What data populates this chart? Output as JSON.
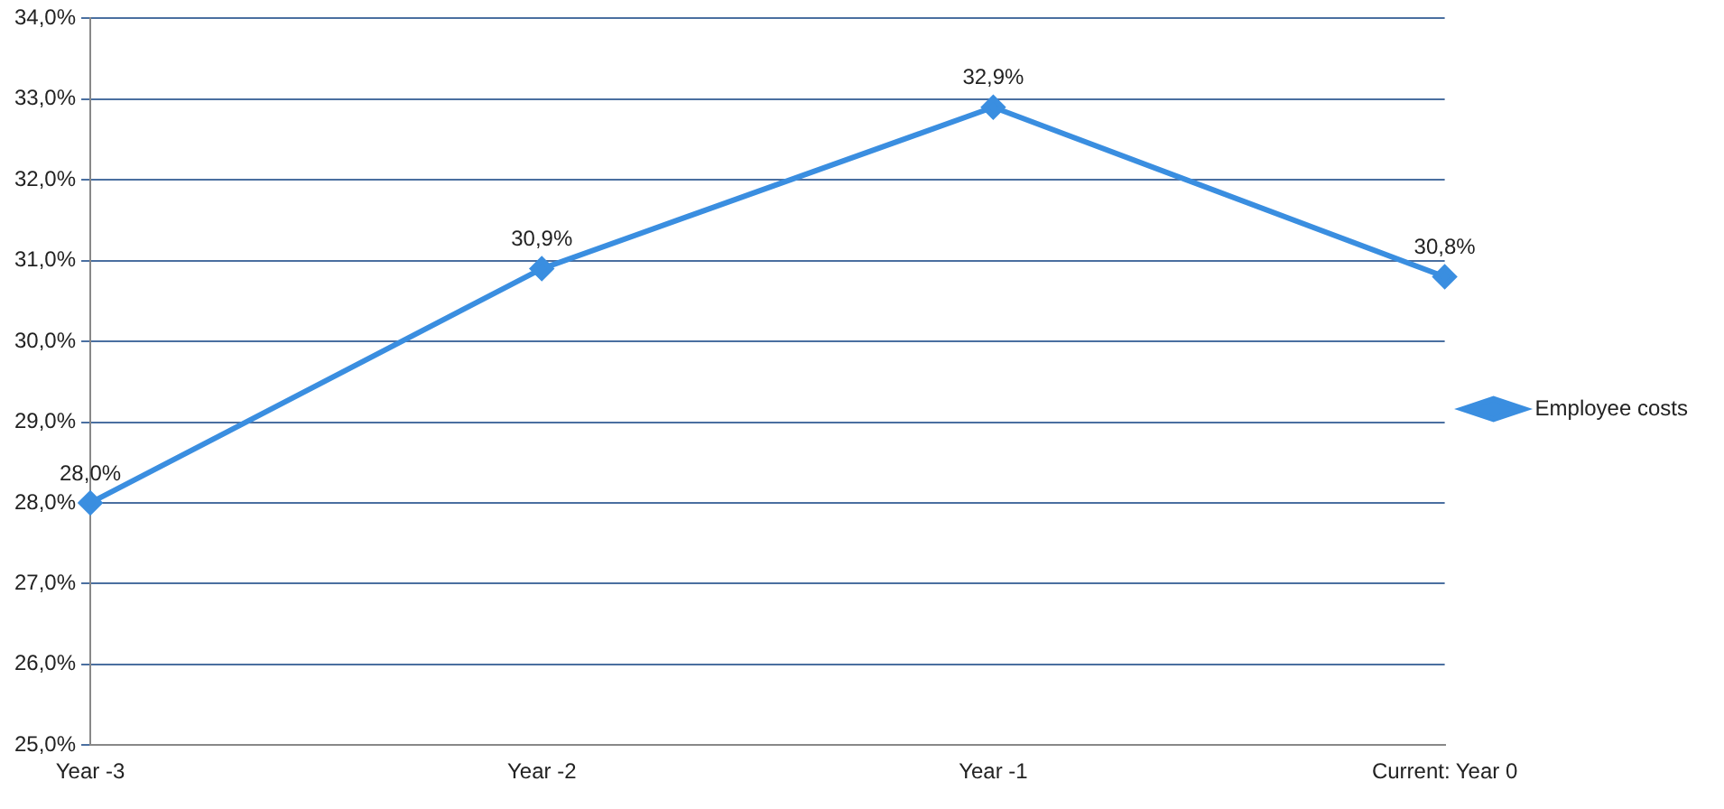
{
  "chart_data": {
    "type": "line",
    "categories": [
      "Year -3",
      "Year -2",
      "Year -1",
      "Current: Year 0"
    ],
    "series": [
      {
        "name": "Employee costs",
        "color": "#3a8ee0",
        "values": [
          28.0,
          30.9,
          32.9,
          30.8
        ],
        "value_labels": [
          "28,0%",
          "30,9%",
          "32,9%",
          "30,8%"
        ]
      }
    ],
    "ylim": [
      25,
      34
    ],
    "yticks": [
      {
        "value": 25,
        "label": "25,0%"
      },
      {
        "value": 26,
        "label": "26,0%"
      },
      {
        "value": 27,
        "label": "27,0%"
      },
      {
        "value": 28,
        "label": "28,0%"
      },
      {
        "value": 29,
        "label": "29,0%"
      },
      {
        "value": 30,
        "label": "30,0%"
      },
      {
        "value": 31,
        "label": "31,0%"
      },
      {
        "value": 32,
        "label": "32,0%"
      },
      {
        "value": 33,
        "label": "33,0%"
      },
      {
        "value": 34,
        "label": "34,0%"
      }
    ],
    "grid": "y",
    "legend": "right",
    "marker": "diamond",
    "line_style": "solid"
  }
}
